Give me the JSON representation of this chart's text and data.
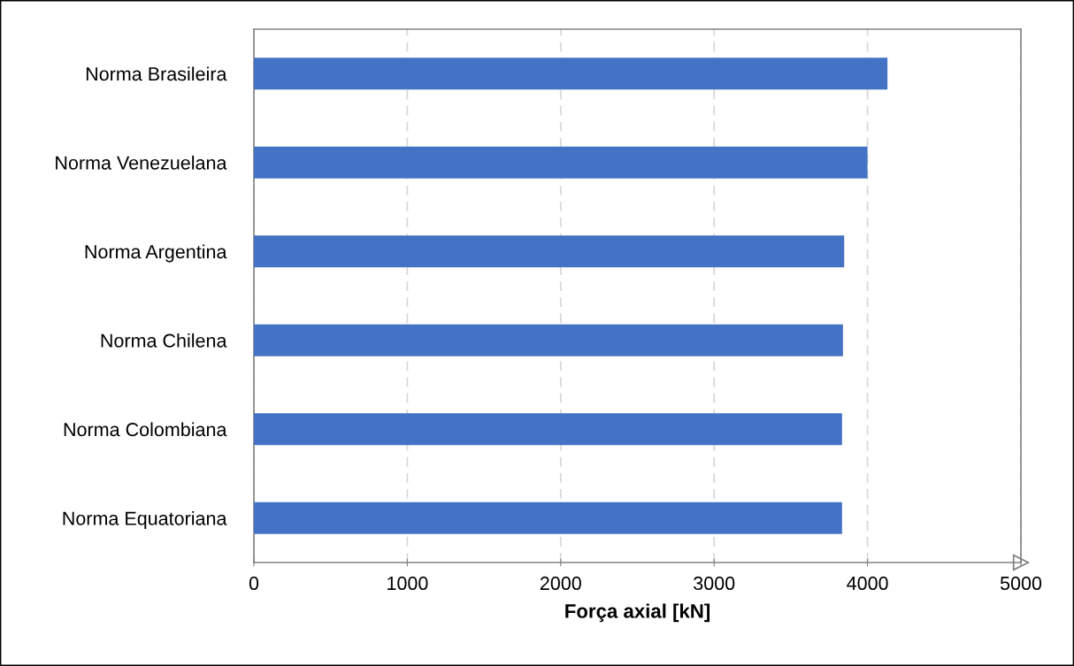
{
  "chart_data": {
    "type": "bar",
    "orientation": "horizontal",
    "xlabel": "Força axial [kN]",
    "categories": [
      "Norma Brasileira",
      "Norma Venezuelana",
      "Norma Argentina",
      "Norma Chilena",
      "Norma Colombiana",
      "Norma Equatoriana"
    ],
    "values": [
      4130,
      4000,
      3848,
      3840,
      3834,
      3834
    ],
    "color": "#4472c4",
    "xlim": [
      0,
      5000
    ],
    "xticks": [
      0,
      1000,
      2000,
      3000,
      4000,
      5000
    ],
    "grid": "x"
  }
}
